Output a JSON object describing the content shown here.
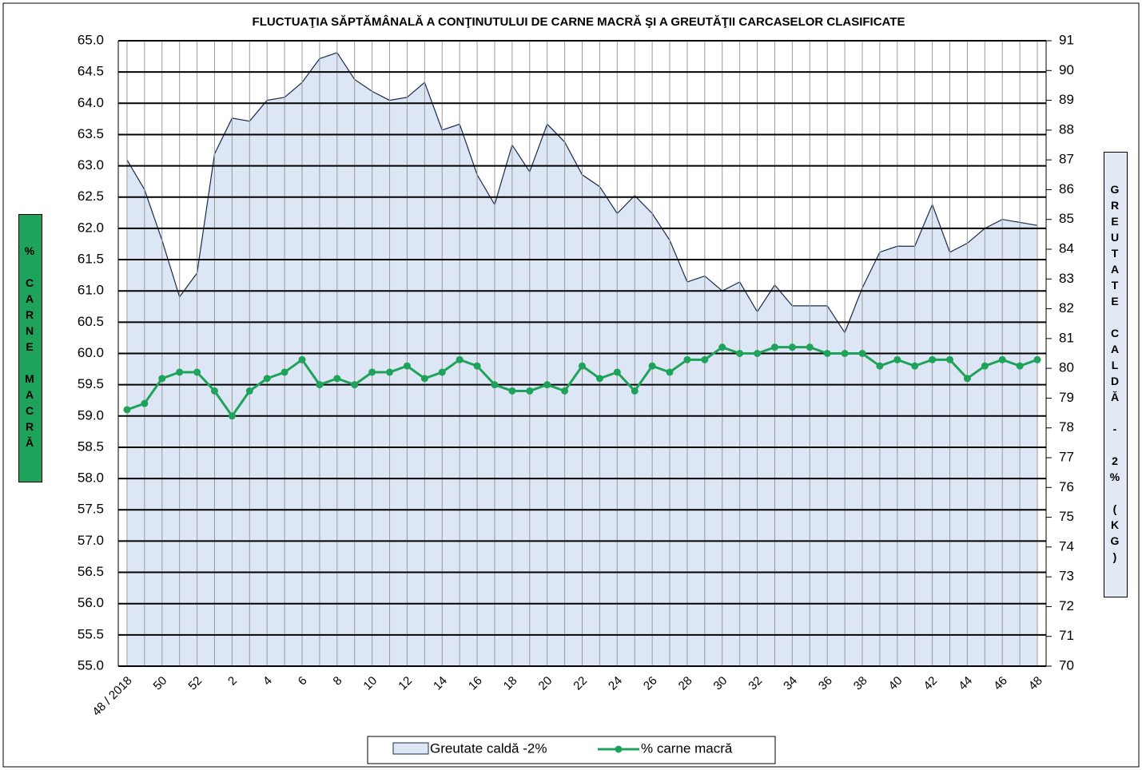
{
  "chart_data": {
    "type": "area-line",
    "title": "FLUCTUAŢIA SĂPTĂMÂNALĂ  A CONŢINUTULUI DE CARNE MACRĂ ŞI A GREUTĂŢII CARCASELOR CLASIFICATE",
    "ylabel": "% CARNE MACRĂ",
    "y2label": "GREUTATE CALDĂ - 2% (KG)",
    "categories": [
      "48 / 2018",
      null,
      "50",
      null,
      "52",
      null,
      "2",
      null,
      "4",
      null,
      "6",
      null,
      "8",
      null,
      "10",
      null,
      "12",
      null,
      "14",
      null,
      "16",
      null,
      "18",
      null,
      "20",
      null,
      "22",
      null,
      "24",
      null,
      "26",
      null,
      "28",
      null,
      "30",
      null,
      "32",
      null,
      "34",
      null,
      "36",
      null,
      "38",
      null,
      "40",
      null,
      "42",
      null,
      "44",
      null,
      "46",
      null,
      "48"
    ],
    "series": [
      {
        "name": "Greutate caldă -2%",
        "type": "area",
        "axis": "y2",
        "color": "#dde6f5",
        "line_color": "#1a2a4a",
        "values": [
          87.0,
          86.0,
          84.3,
          82.4,
          83.2,
          87.2,
          88.4,
          88.3,
          89.0,
          89.1,
          89.6,
          90.4,
          90.6,
          89.7,
          89.3,
          89.0,
          89.1,
          89.6,
          88.0,
          88.2,
          86.5,
          85.5,
          87.5,
          86.6,
          88.2,
          87.6,
          86.5,
          86.1,
          85.2,
          85.8,
          85.2,
          84.3,
          82.9,
          83.1,
          82.6,
          82.9,
          81.9,
          82.8,
          82.1,
          82.1,
          82.1,
          81.2,
          82.7,
          83.9,
          84.1,
          84.1,
          85.5,
          83.9,
          84.2,
          84.7,
          85.0,
          84.9,
          84.8
        ]
      },
      {
        "name": "% carne macră",
        "type": "line",
        "color": "#1fa35a",
        "values": [
          59.1,
          59.2,
          59.6,
          59.7,
          59.7,
          59.4,
          59.0,
          59.4,
          59.6,
          59.7,
          59.9,
          59.5,
          59.6,
          59.5,
          59.7,
          59.7,
          59.8,
          59.6,
          59.7,
          59.9,
          59.8,
          59.5,
          59.4,
          59.4,
          59.5,
          59.4,
          59.8,
          59.6,
          59.7,
          59.4,
          59.8,
          59.7,
          59.9,
          59.9,
          60.1,
          60.0,
          60.0,
          60.1,
          60.1,
          60.1,
          60.0,
          60.0,
          60.0,
          59.8,
          59.9,
          59.8,
          59.9,
          59.9,
          59.6,
          59.8,
          59.9,
          59.8,
          59.9
        ]
      }
    ],
    "ylim": [
      55,
      65
    ],
    "yticks": [
      {
        "value": 55,
        "label": "55.0"
      },
      55.5,
      {
        "value": 56,
        "label": "56.0"
      },
      56.5,
      {
        "value": 57,
        "label": "57.0"
      },
      57.5,
      {
        "value": 58,
        "label": "58.0"
      },
      58.5,
      {
        "value": 59,
        "label": "59.0"
      },
      59.5,
      {
        "value": 60,
        "label": "60.0"
      },
      60.5,
      {
        "value": 61,
        "label": "61.0"
      },
      61.5,
      {
        "value": 62,
        "label": "62.0"
      },
      62.5,
      {
        "value": 63,
        "label": "63.0"
      },
      63.5,
      {
        "value": 64,
        "label": "64.0"
      },
      64.5,
      {
        "value": 65,
        "label": "65.0"
      }
    ],
    "y2lim": [
      70,
      91
    ],
    "y2ticks": [
      70,
      71,
      72,
      73,
      74,
      75,
      76,
      77,
      78,
      79,
      80,
      81,
      82,
      83,
      84,
      85,
      86,
      87,
      88,
      89,
      90,
      91
    ],
    "grid": true
  }
}
